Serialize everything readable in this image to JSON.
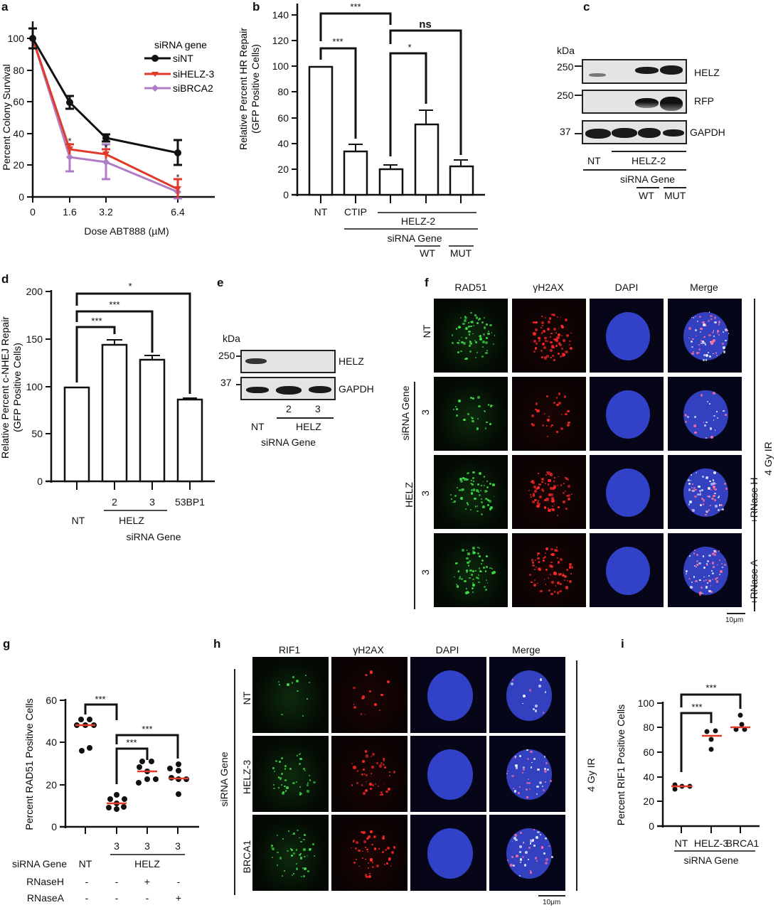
{
  "panels": {
    "a": {
      "letter": "a"
    },
    "b": {
      "letter": "b"
    },
    "c": {
      "letter": "c"
    },
    "d": {
      "letter": "d"
    },
    "e": {
      "letter": "e"
    },
    "f": {
      "letter": "f"
    },
    "g": {
      "letter": "g"
    },
    "h": {
      "letter": "h"
    },
    "i": {
      "letter": "i"
    }
  },
  "chart_data": [
    {
      "panel": "a",
      "type": "line",
      "title": "",
      "xlabel": "Dose ABT888 (µM)",
      "ylabel": "Percent Colony Survival",
      "x": [
        0,
        1.6,
        3.2,
        6.4
      ],
      "xticks": [
        "0",
        "1.6",
        "3.2",
        "6.4"
      ],
      "yticks": [
        "0",
        "20",
        "40",
        "60",
        "80",
        "100"
      ],
      "ylim": [
        0,
        110
      ],
      "legend_title": "siRNA gene",
      "legend_position": "upper right",
      "series": [
        {
          "name": "siNT",
          "color": "#111111",
          "marker": "circle",
          "values": [
            100,
            60,
            37,
            28
          ],
          "errors": [
            6,
            4,
            2,
            8
          ]
        },
        {
          "name": "siHELZ-3",
          "color": "#e03a2a",
          "marker": "triangle-down",
          "values": [
            100,
            30,
            27,
            5
          ],
          "errors": [
            6,
            3,
            3,
            6
          ]
        },
        {
          "name": "siBRCA2",
          "color": "#b07cc6",
          "marker": "diamond",
          "values": [
            100,
            25,
            22,
            3
          ],
          "errors": [
            6,
            9,
            11,
            4
          ]
        }
      ],
      "annotations": [
        "*",
        "*",
        "*"
      ]
    },
    {
      "panel": "b",
      "type": "bar",
      "ylabel": "Relative Percent HR Repair (GFP Positive Cells)",
      "categories": [
        "NT",
        "CTIP",
        "HELZ-2",
        "HELZ-2 + WT",
        "HELZ-2 + MUT"
      ],
      "values": [
        100,
        34,
        20,
        55,
        22
      ],
      "errors": [
        0,
        5,
        3,
        10,
        5
      ],
      "yticks": [
        "0",
        "20",
        "40",
        "60",
        "80",
        "100",
        "120",
        "140"
      ],
      "ylim": [
        0,
        145
      ],
      "significance": [
        {
          "pair": [
            "NT",
            "CTIP"
          ],
          "label": "***"
        },
        {
          "pair": [
            "NT",
            "HELZ-2"
          ],
          "label": "***"
        },
        {
          "pair": [
            "HELZ-2",
            "HELZ-2 + WT"
          ],
          "label": "*"
        },
        {
          "pair": [
            "HELZ-2",
            "HELZ-2 + MUT"
          ],
          "label": "ns"
        }
      ],
      "group_labels": {
        "helz": "HELZ-2",
        "sirna": "siRNA Gene",
        "wt": "WT",
        "mut": "MUT"
      }
    },
    {
      "panel": "d",
      "type": "bar",
      "ylabel": "Relative Percent c-NHEJ Repair (GFP Positive Cells)",
      "categories": [
        "NT",
        "HELZ 2",
        "HELZ 3",
        "53BP1"
      ],
      "values": [
        99,
        144,
        128,
        86
      ],
      "errors": [
        0,
        5,
        4,
        1.5
      ],
      "yticks": [
        "0",
        "50",
        "100",
        "150",
        "200"
      ],
      "ylim": [
        0,
        200
      ],
      "significance": [
        {
          "pair": [
            "NT",
            "HELZ 2"
          ],
          "label": "***"
        },
        {
          "pair": [
            "NT",
            "HELZ 3"
          ],
          "label": "***"
        },
        {
          "pair": [
            "NT",
            "53BP1"
          ],
          "label": "*"
        }
      ],
      "group_labels": {
        "helz": "HELZ",
        "sirna": "siRNA Gene"
      }
    },
    {
      "panel": "g",
      "type": "scatter",
      "ylabel": "Percent RAD51 Positive Cells",
      "categories": [
        "NT",
        "HELZ 3",
        "HELZ 3 +RNaseH",
        "HELZ 3 +RNaseA"
      ],
      "points": [
        [
          51,
          51,
          48,
          48,
          48,
          37,
          36
        ],
        [
          15,
          13,
          13,
          11,
          10,
          9,
          8
        ],
        [
          31,
          31,
          28,
          26,
          23,
          23,
          21
        ],
        [
          29,
          27,
          26,
          23,
          22,
          22,
          15
        ]
      ],
      "medians": [
        48,
        11,
        26,
        23
      ],
      "median_color": "#e03a2a",
      "yticks": [
        "0",
        "20",
        "40",
        "60"
      ],
      "ylim": [
        0,
        62
      ],
      "significance": [
        {
          "pair": [
            "NT",
            "HELZ 3"
          ],
          "label": "***"
        },
        {
          "pair": [
            "HELZ 3",
            "HELZ 3 +RNaseH"
          ],
          "label": "***"
        },
        {
          "pair": [
            "HELZ 3",
            "HELZ 3 +RNaseA"
          ],
          "label": "***"
        }
      ],
      "table": {
        "rows": [
          {
            "label": "siRNA Gene",
            "values": [
              "NT",
              "3",
              "3",
              "3"
            ],
            "group": "HELZ"
          },
          {
            "label": "RNaseH",
            "values": [
              "-",
              "-",
              "+",
              "-"
            ]
          },
          {
            "label": "RNaseA",
            "values": [
              "-",
              "-",
              "-",
              "+"
            ]
          }
        ]
      }
    },
    {
      "panel": "i",
      "type": "scatter",
      "ylabel": "Percent RIF1 Positive Cells",
      "xlabel": "siRNA Gene",
      "categories": [
        "NT",
        "HELZ-3",
        "BRCA1"
      ],
      "points": [
        [
          33,
          32,
          32,
          30
        ],
        [
          77,
          76,
          70,
          62
        ],
        [
          90,
          82,
          78,
          78
        ]
      ],
      "medians": [
        32,
        73,
        80
      ],
      "median_color": "#e03a2a",
      "yticks": [
        "0",
        "20",
        "40",
        "60",
        "80",
        "100"
      ],
      "ylim": [
        0,
        100
      ],
      "significance": [
        {
          "pair": [
            "NT",
            "HELZ-3"
          ],
          "label": "***"
        },
        {
          "pair": [
            "NT",
            "BRCA1"
          ],
          "label": "***"
        }
      ]
    }
  ],
  "blot_c": {
    "kda_label": "kDa",
    "markers": [
      "250",
      "250",
      "37"
    ],
    "rows": [
      "HELZ",
      "RFP",
      "GAPDH"
    ],
    "lanes": {
      "nt": "NT",
      "helz": "HELZ-2",
      "sirna": "siRNA Gene",
      "wt": "WT",
      "mut": "MUT"
    }
  },
  "blot_e": {
    "kda_label": "kDa",
    "markers": [
      "250",
      "37"
    ],
    "rows": [
      "HELZ",
      "GAPDH"
    ],
    "lanes": {
      "nt": "NT",
      "n2": "2",
      "n3": "3",
      "helz": "HELZ",
      "sirna": "siRNA Gene"
    }
  },
  "micro_f": {
    "columns": [
      "RAD51",
      "γH2AX",
      "DAPI",
      "Merge"
    ],
    "row_labels": [
      "NT",
      "3",
      "3",
      "3"
    ],
    "group_left": "HELZ",
    "group_left_outer": "siRNA Gene",
    "right_labels": [
      "+RNase H",
      "+RNase A"
    ],
    "right_outer": "4 Gy IR",
    "scale_bar": "10μm"
  },
  "micro_h": {
    "columns": [
      "RIF1",
      "γH2AX",
      "DAPI",
      "Merge"
    ],
    "row_labels": [
      "NT",
      "HELZ-3",
      "BRCA1"
    ],
    "group_left": "siRNA Gene",
    "right_outer": "4 Gy IR",
    "scale_bar": "10μm"
  }
}
